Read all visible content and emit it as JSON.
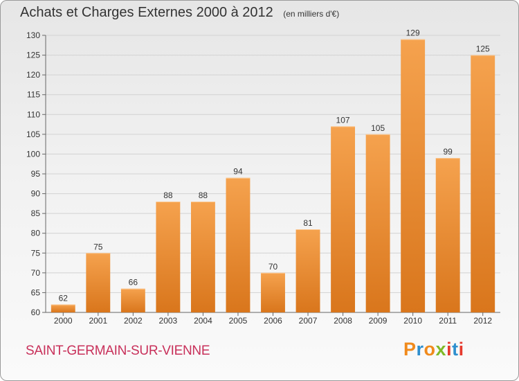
{
  "header": {
    "title": "Achats et Charges Externes 2000 à 2012",
    "unit": "(en milliers d'€)"
  },
  "footer": {
    "commune": "SAINT-GERMAIN-SUR-VIENNE",
    "brand": "Proxiti"
  },
  "colors": {
    "bar_light": "#f5a24e",
    "bar_dark": "#d9761c",
    "commune_text": "#c8305a",
    "brand_letters": [
      "#f08a1c",
      "#2f8fce",
      "#f08a1c",
      "#7fb928",
      "#e63a2e",
      "#2f8fce",
      "#e63a2e"
    ]
  },
  "chart_data": {
    "type": "bar",
    "categories": [
      "2000",
      "2001",
      "2002",
      "2003",
      "2004",
      "2005",
      "2006",
      "2007",
      "2008",
      "2009",
      "2010",
      "2011",
      "2012"
    ],
    "values": [
      62,
      75,
      66,
      88,
      88,
      94,
      70,
      81,
      107,
      105,
      129,
      99,
      125
    ],
    "title": "Achats et Charges Externes 2000 à 2012",
    "subtitle": "(en milliers d'€)",
    "ylim": [
      60,
      130
    ],
    "yticks": [
      60,
      65,
      70,
      75,
      80,
      85,
      90,
      95,
      100,
      105,
      110,
      115,
      120,
      125,
      130
    ],
    "grid": true,
    "legend": "none"
  }
}
